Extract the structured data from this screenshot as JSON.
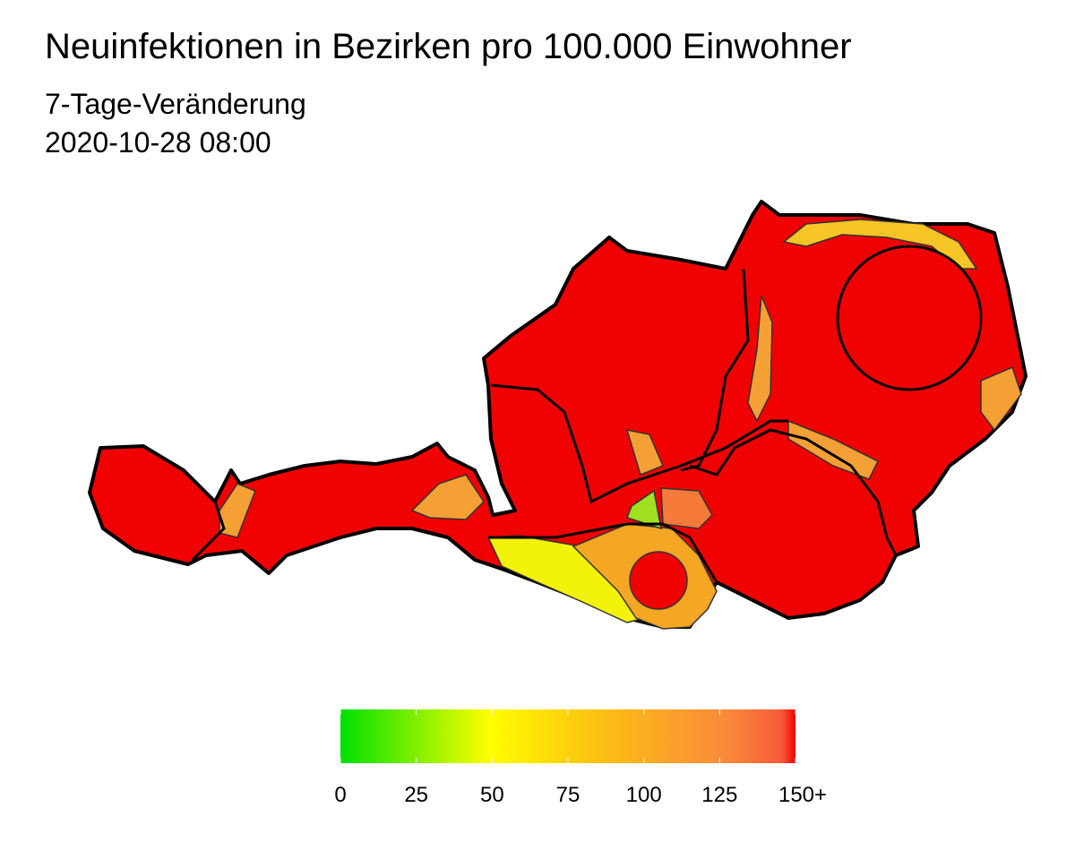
{
  "title": "Neuinfektionen in Bezirken pro 100.000 Einwohner",
  "subtitle": "7-Tage-Veränderung",
  "date": "2020-10-28 08:00",
  "legend": {
    "range": [
      0,
      150
    ],
    "ticks": [
      0,
      25,
      50,
      75,
      100,
      125,
      {
        "value": 150,
        "label": "150+"
      }
    ]
  }
}
